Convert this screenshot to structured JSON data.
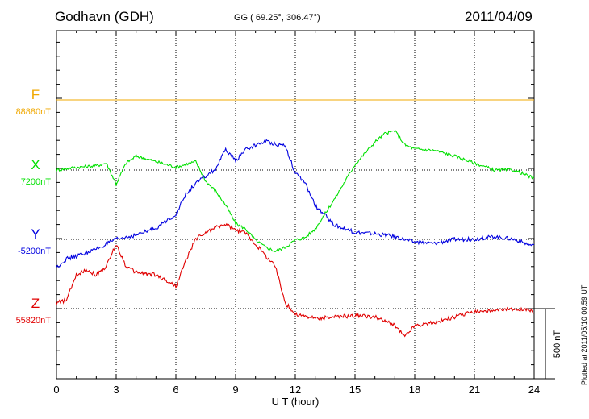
{
  "header": {
    "station": "Godhavn (GDH)",
    "coords": "GG ( 69.25°, 306.47°)",
    "date": "2011/04/09"
  },
  "footer": {
    "plotted": "Plotted at 2011/05/10 00:59 UT"
  },
  "chart_data": {
    "type": "line",
    "xlabel": "U T (hour)",
    "xlim": [
      0,
      24
    ],
    "xticks": [
      0,
      3,
      6,
      9,
      12,
      15,
      18,
      21,
      24
    ],
    "tick_labels": [
      "0",
      "3",
      "6",
      "9",
      "12",
      "15",
      "18",
      "21",
      "24"
    ],
    "y_unit": "nT",
    "scale_bar": {
      "value_nT": 500,
      "label": "500 nT"
    },
    "series": [
      {
        "name": "F",
        "baseline": 88880,
        "baseline_label": "88880nT",
        "color": "#f0a800",
        "x": [
          0,
          24
        ],
        "y": [
          88880,
          88880
        ]
      },
      {
        "name": "X",
        "baseline": 7200,
        "baseline_label": "7200nT",
        "color": "#00e000",
        "x": [
          0,
          1,
          2,
          2.5,
          3,
          3.5,
          4,
          5,
          6,
          7,
          7.5,
          8,
          8.5,
          9,
          9.5,
          10,
          10.5,
          11,
          11.5,
          12,
          12.5,
          13,
          14,
          15,
          16,
          16.5,
          17,
          17.5,
          18,
          19,
          20,
          21,
          22,
          23,
          24
        ],
        "y": [
          7200,
          7220,
          7230,
          7250,
          7100,
          7250,
          7300,
          7260,
          7220,
          7260,
          7120,
          7050,
          6950,
          6820,
          6780,
          6700,
          6650,
          6620,
          6650,
          6700,
          6720,
          6780,
          7000,
          7240,
          7400,
          7460,
          7480,
          7380,
          7350,
          7340,
          7300,
          7250,
          7200,
          7200,
          7140
        ]
      },
      {
        "name": "Y",
        "baseline": -5200,
        "baseline_label": "-5200nT",
        "color": "#0000e0",
        "x": [
          0,
          0.5,
          1,
          2,
          3,
          4,
          5,
          6,
          6.5,
          7,
          8,
          8.5,
          9,
          9.5,
          10,
          10.5,
          11,
          11.5,
          12,
          12.5,
          13,
          14,
          15,
          16,
          17,
          18,
          19,
          20,
          21,
          22,
          23,
          24
        ],
        "y": [
          -5400,
          -5340,
          -5320,
          -5270,
          -5200,
          -5170,
          -5120,
          -5020,
          -4880,
          -4800,
          -4700,
          -4560,
          -4640,
          -4560,
          -4530,
          -4500,
          -4520,
          -4530,
          -4730,
          -4800,
          -4960,
          -5100,
          -5150,
          -5160,
          -5180,
          -5220,
          -5230,
          -5200,
          -5200,
          -5180,
          -5200,
          -5250
        ]
      },
      {
        "name": "Z",
        "baseline": 55820,
        "baseline_label": "55820nT",
        "color": "#e00000",
        "x": [
          0,
          0.5,
          1,
          1.5,
          2,
          2.5,
          3,
          3.5,
          4,
          5,
          5.5,
          6,
          6.5,
          7,
          8,
          8.5,
          9,
          9.5,
          10,
          10.5,
          11,
          11.5,
          12,
          13,
          14,
          15,
          16,
          17,
          17.5,
          18,
          19,
          20,
          21,
          22,
          23,
          24
        ],
        "y": [
          55860,
          55880,
          56060,
          56100,
          56060,
          56120,
          56280,
          56120,
          56080,
          56060,
          56020,
          55980,
          56160,
          56320,
          56400,
          56420,
          56380,
          56360,
          56280,
          56200,
          56120,
          55860,
          55780,
          55750,
          55760,
          55770,
          55760,
          55700,
          55620,
          55700,
          55720,
          55760,
          55800,
          55800,
          55820,
          55800
        ]
      }
    ]
  }
}
